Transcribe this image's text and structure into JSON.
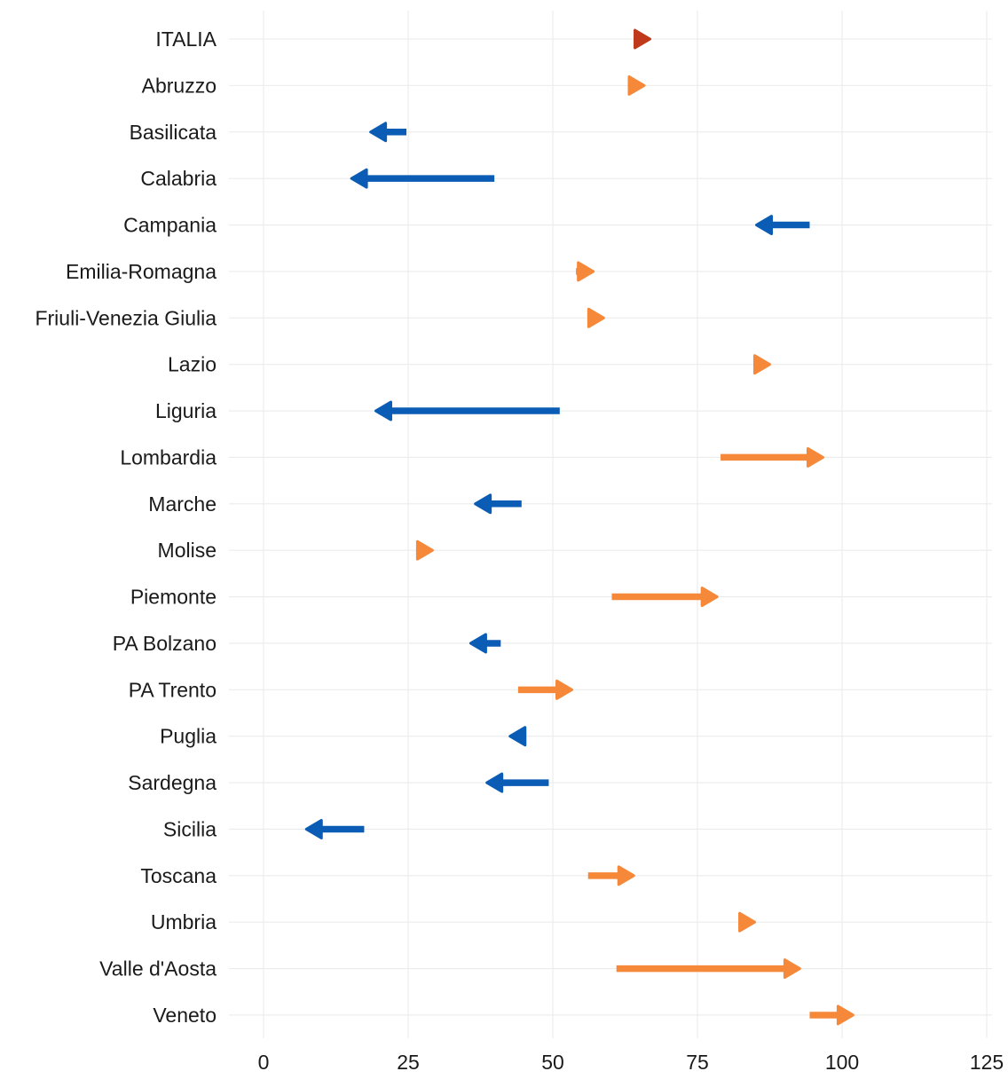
{
  "chart_data": {
    "type": "arrow",
    "title": "",
    "xlabel": "",
    "ylabel": "",
    "xlim": [
      -6,
      126
    ],
    "x_ticks": [
      0,
      25,
      50,
      75,
      100,
      125
    ],
    "x_tick_labels": [
      "0",
      "25",
      "50",
      "75",
      "100",
      "125"
    ],
    "grid": true,
    "legend": "none",
    "colors": {
      "increase": "#F6883A",
      "decrease": "#0A5CB5",
      "national": "#C0391B",
      "grid": "#EBEBEB"
    },
    "categories": [
      "ITALIA",
      "Abruzzo",
      "Basilicata",
      "Calabria",
      "Campania",
      "Emilia-Romagna",
      "Friuli-Venezia Giulia",
      "Lazio",
      "Liguria",
      "Lombardia",
      "Marche",
      "Molise",
      "Piemonte",
      "PA Bolzano",
      "PA Trento",
      "Puglia",
      "Sardegna",
      "Sicilia",
      "Toscana",
      "Umbria",
      "Valle d'Aosta",
      "Veneto"
    ],
    "series": [
      {
        "region": "ITALIA",
        "start": 64.5,
        "end": 66.8,
        "group": "national"
      },
      {
        "region": "Abruzzo",
        "start": 63.5,
        "end": 65.8,
        "group": "increase"
      },
      {
        "region": "Basilicata",
        "start": 24.7,
        "end": 18.5,
        "group": "decrease"
      },
      {
        "region": "Calabria",
        "start": 39.9,
        "end": 15.2,
        "group": "decrease"
      },
      {
        "region": "Campania",
        "start": 94.4,
        "end": 85.2,
        "group": "decrease"
      },
      {
        "region": "Emilia-Romagna",
        "start": 54.0,
        "end": 57.0,
        "group": "increase"
      },
      {
        "region": "Friuli-Venezia Giulia",
        "start": 56.2,
        "end": 58.8,
        "group": "increase"
      },
      {
        "region": "Lazio",
        "start": 85.1,
        "end": 87.5,
        "group": "increase"
      },
      {
        "region": "Liguria",
        "start": 51.2,
        "end": 19.4,
        "group": "decrease"
      },
      {
        "region": "Lombardia",
        "start": 79.0,
        "end": 96.7,
        "group": "increase"
      },
      {
        "region": "Marche",
        "start": 44.6,
        "end": 36.6,
        "group": "decrease"
      },
      {
        "region": "Molise",
        "start": 26.5,
        "end": 29.2,
        "group": "increase"
      },
      {
        "region": "Piemonte",
        "start": 60.2,
        "end": 78.4,
        "group": "increase"
      },
      {
        "region": "PA Bolzano",
        "start": 41.0,
        "end": 35.8,
        "group": "decrease"
      },
      {
        "region": "PA Trento",
        "start": 44.0,
        "end": 53.3,
        "group": "increase"
      },
      {
        "region": "Puglia",
        "start": 45.1,
        "end": 42.6,
        "group": "decrease"
      },
      {
        "region": "Sardegna",
        "start": 49.3,
        "end": 38.6,
        "group": "decrease"
      },
      {
        "region": "Sicilia",
        "start": 17.4,
        "end": 7.4,
        "group": "decrease"
      },
      {
        "region": "Toscana",
        "start": 56.1,
        "end": 64.0,
        "group": "increase"
      },
      {
        "region": "Umbria",
        "start": 82.4,
        "end": 84.9,
        "group": "increase"
      },
      {
        "region": "Valle d'Aosta",
        "start": 61.0,
        "end": 92.7,
        "group": "increase"
      },
      {
        "region": "Veneto",
        "start": 94.4,
        "end": 101.9,
        "group": "increase"
      }
    ]
  }
}
